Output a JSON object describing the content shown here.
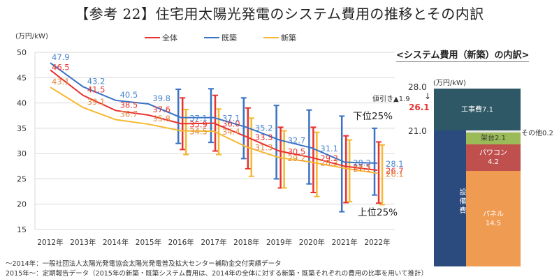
{
  "title": "【参考 22】住宅用太陽光発電のシステム費用の推移とその内訳",
  "chart_data": [
    {
      "type": "line",
      "title": "住宅用太陽光発電のシステム費用の推移",
      "ylabel": "(万円/kW)",
      "xlabel": "",
      "ylim": [
        15,
        50
      ],
      "yticks": [
        15,
        20,
        25,
        30,
        35,
        40,
        45,
        50
      ],
      "grid": true,
      "legend_position": "top",
      "categories": [
        "2012年",
        "2013年",
        "2014年",
        "2015年",
        "2016年",
        "2017年",
        "2018年",
        "2019年",
        "2020年",
        "2021年",
        "2022年"
      ],
      "series": [
        {
          "name": "全体",
          "color": "#e8322f",
          "label_color": "#e8322f",
          "values": [
            46.5,
            41.5,
            38.5,
            37.6,
            35.9,
            36.0,
            33.3,
            30.5,
            29.2,
            27.5,
            26.7
          ],
          "error_high": [
            null,
            null,
            null,
            null,
            41.0,
            41.5,
            39.0,
            35.2,
            35.2,
            33.5,
            32.3
          ],
          "error_low": [
            null,
            null,
            null,
            null,
            30.8,
            30.5,
            27.0,
            23.2,
            22.3,
            20.3,
            20.2
          ]
        },
        {
          "name": "既築",
          "color": "#3a72c4",
          "label_color": "#4a86d0",
          "values": [
            47.9,
            43.2,
            40.5,
            39.8,
            37.1,
            37.1,
            35.2,
            32.7,
            31.1,
            28.3,
            28.1
          ],
          "error_high": [
            null,
            null,
            null,
            null,
            42.7,
            42.8,
            41.0,
            39.5,
            38.6,
            37.4,
            35.0
          ],
          "error_low": [
            null,
            null,
            null,
            null,
            32.0,
            32.2,
            29.0,
            25.0,
            24.0,
            18.5,
            21.8
          ]
        },
        {
          "name": "新築",
          "color": "#f5b830",
          "label_color": "#e08a3c",
          "values": [
            43.1,
            39.1,
            36.7,
            35.8,
            34.5,
            34.4,
            31.3,
            29.2,
            28.3,
            27.1,
            26.1
          ],
          "error_high": [
            null,
            null,
            null,
            null,
            38.7,
            38.8,
            37.0,
            34.5,
            34.2,
            32.7,
            31.7
          ],
          "error_low": [
            null,
            null,
            null,
            null,
            29.8,
            29.8,
            25.5,
            23.2,
            21.5,
            20.5,
            19.9
          ]
        }
      ],
      "annotations": [
        "下位25%",
        "上位25%"
      ]
    },
    {
      "type": "bar",
      "title": "<システム費用（新築）の内訳>",
      "ylabel": "(万円/kW)",
      "total_before": 28.0,
      "discount_label": "値引き▲1.9",
      "total_after": 26.1,
      "boundary_label": 21.0,
      "segments": [
        {
          "name": "工事費",
          "value": 7.1,
          "label": "工事費7.1",
          "color": "#2e5866"
        },
        {
          "name": "その他",
          "value": 0.2,
          "label": "その他0.2",
          "color": "#e9e9e9"
        },
        {
          "name": "架台",
          "value": 2.1,
          "label": "架台2.1",
          "color": "#9bbb59"
        },
        {
          "name": "パワコン",
          "value": 4.2,
          "label": "パワコン\n4.2",
          "color": "#c0504d"
        },
        {
          "name": "パネル",
          "value": 14.5,
          "label": "パネル\n14.5",
          "color": "#f09b52"
        }
      ],
      "group_label": "設備費",
      "group_color": "#2b4a7e"
    }
  ],
  "notes": [
    "～2014年：一般社団法人太陽光発電協会太陽光発電普及拡大センター補助金交付実績データ",
    "2015年～：定期報告データ（2015年の新築・既築システム費用は、2014年の全体に対する新築・既築それぞれの費用の比率を用いて推計）"
  ]
}
